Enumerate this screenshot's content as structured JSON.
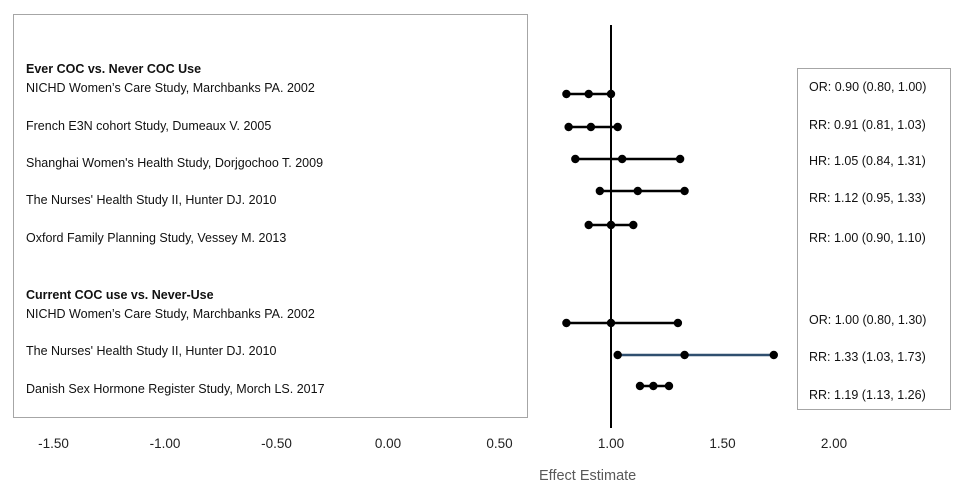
{
  "chart_data": {
    "type": "forest",
    "xlabel": "Effect Estimate",
    "xlim": [
      -1.5,
      2.0
    ],
    "x_ticks": [
      "-1.50",
      "-1.00",
      "-0.50",
      "0.00",
      "0.50",
      "1.00",
      "1.50",
      "2.00"
    ],
    "reference_line": 1.0,
    "groups": [
      {
        "header": "Ever COC vs. Never COC Use",
        "studies": [
          {
            "label": "NICHD Women’s Care Study, Marchbanks PA. 2002",
            "estimate": 0.9,
            "lower": 0.8,
            "upper": 1.0,
            "result_text": "OR: 0.90 (0.80, 1.00)"
          },
          {
            "label": "French E3N cohort Study, Dumeaux V. 2005",
            "estimate": 0.91,
            "lower": 0.81,
            "upper": 1.03,
            "result_text": "RR: 0.91 (0.81, 1.03)"
          },
          {
            "label": "Shanghai Women's Health Study, Dorjgochoo T. 2009",
            "estimate": 1.05,
            "lower": 0.84,
            "upper": 1.31,
            "result_text": "HR: 1.05 (0.84, 1.31)"
          },
          {
            "label": "The Nurses' Health Study II, Hunter DJ. 2010",
            "estimate": 1.12,
            "lower": 0.95,
            "upper": 1.33,
            "result_text": "RR: 1.12 (0.95, 1.33)"
          },
          {
            "label": "Oxford Family Planning Study, Vessey M. 2013",
            "estimate": 1.0,
            "lower": 0.9,
            "upper": 1.1,
            "result_text": "RR: 1.00 (0.90, 1.10)"
          }
        ]
      },
      {
        "header": "Current COC use vs. Never-Use",
        "studies": [
          {
            "label": "NICHD Women’s Care Study, Marchbanks PA. 2002",
            "estimate": 1.0,
            "lower": 0.8,
            "upper": 1.3,
            "result_text": "OR: 1.00 (0.80, 1.30)"
          },
          {
            "label": "The Nurses' Health Study II, Hunter DJ. 2010",
            "estimate": 1.33,
            "lower": 1.03,
            "upper": 1.73,
            "result_text": "RR: 1.33 (1.03, 1.73)"
          },
          {
            "label": "Danish Sex Hormone Register Study, Morch LS. 2017",
            "estimate": 1.19,
            "lower": 1.13,
            "upper": 1.26,
            "result_text": "RR: 1.19 (1.13, 1.26)"
          }
        ]
      }
    ]
  },
  "colors": {
    "marker": "#000000",
    "whisker": "#000000",
    "highlight_whisker": "#2f4f6f",
    "reference_line": "#000000",
    "box_border": "#a6a6a6",
    "axis_title": "#595959"
  }
}
